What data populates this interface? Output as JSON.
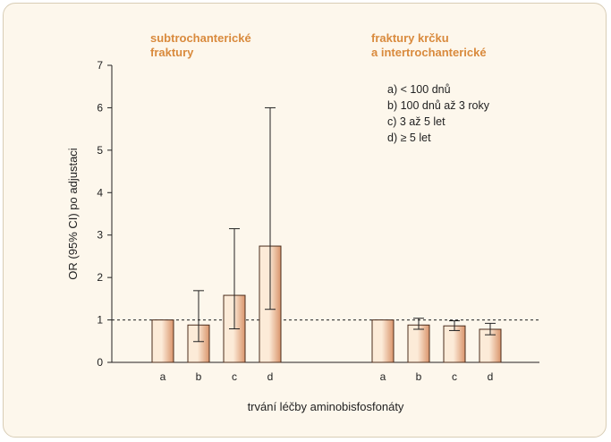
{
  "chart_data": {
    "type": "bar",
    "ylabel": "OR (95% CI) po adjustaci",
    "xlabel": "trvání léčby aminobisfosfonáty",
    "ylim": [
      0,
      7
    ],
    "yticks": [
      "0",
      "1",
      "2",
      "3",
      "4",
      "5",
      "6",
      "7"
    ],
    "reference_line": 1,
    "groups": [
      {
        "title_lines": [
          "subtrochanterické",
          "fraktury"
        ],
        "categories": [
          "a",
          "b",
          "c",
          "d"
        ],
        "values": [
          1.0,
          0.88,
          1.58,
          2.74
        ],
        "ci_low": [
          1.0,
          0.49,
          0.79,
          1.25
        ],
        "ci_high": [
          1.0,
          1.69,
          3.15,
          6.0
        ]
      },
      {
        "title_lines": [
          "fraktury krčku",
          "a intertrochanterické"
        ],
        "categories": [
          "a",
          "b",
          "c",
          "d"
        ],
        "values": [
          1.0,
          0.88,
          0.86,
          0.78
        ],
        "ci_low": [
          1.0,
          0.78,
          0.75,
          0.65
        ],
        "ci_high": [
          1.0,
          1.04,
          0.98,
          0.92
        ]
      }
    ],
    "legend": [
      "a) < 100 dnů",
      "b) 100 dnů až 3 roky",
      "c) 3 až 5 let",
      "d) ≥ 5 let"
    ],
    "colors": {
      "bar_light": "#fcebd8",
      "bar_dark": "#d9946b",
      "bar_stroke": "#4a2c1c",
      "title": "#d98a3d"
    }
  }
}
